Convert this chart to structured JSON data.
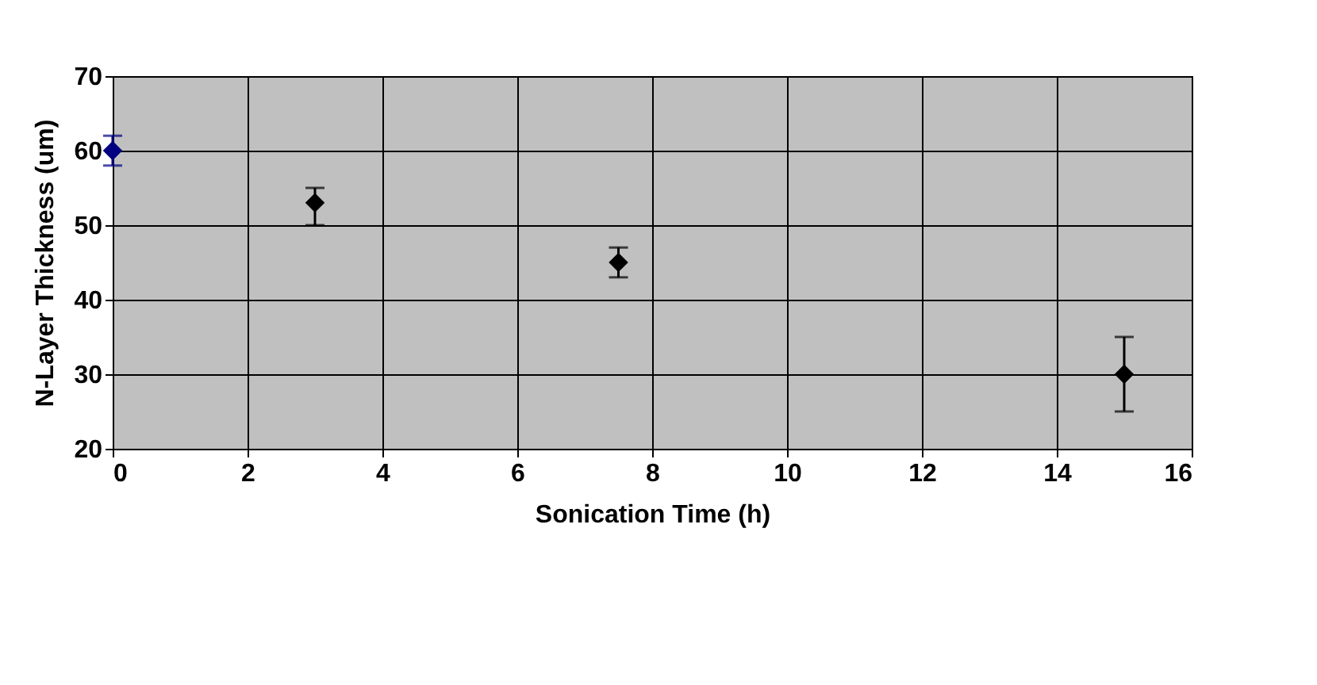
{
  "chart_data": {
    "type": "scatter",
    "xlabel": "Sonication Time (h)",
    "ylabel": "N-Layer Thickness (um)",
    "series": [
      {
        "color": "#000080",
        "x": [
          0
        ],
        "values": [
          60
        ],
        "errors": [
          [
            58,
            62
          ]
        ]
      },
      {
        "color": "#000000",
        "x": [
          3,
          7.5,
          15
        ],
        "values": [
          53,
          45,
          30
        ],
        "errors": [
          [
            50,
            55
          ],
          [
            43,
            47
          ],
          [
            25,
            35
          ]
        ]
      }
    ],
    "xlim": [
      0,
      16
    ],
    "xticks": [
      0,
      2,
      4,
      6,
      8,
      10,
      12,
      14,
      16
    ],
    "ylim": [
      20,
      70
    ],
    "yticks": [
      20,
      30,
      40,
      50,
      60,
      70
    ],
    "grid": true,
    "marker": "diamond"
  }
}
